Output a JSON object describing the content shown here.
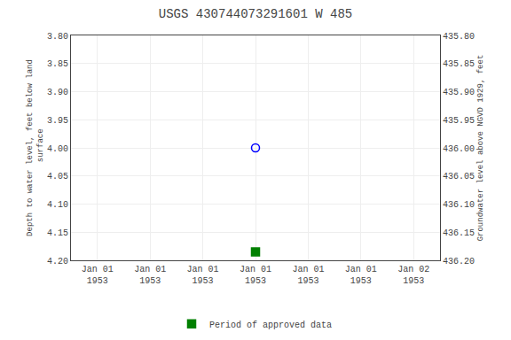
{
  "chart_data": {
    "type": "scatter",
    "title": "USGS 430744073291601 W 485",
    "ylabel": "Depth to water level, feet below land\n surface",
    "y2label": "Groundwater level above NGVD 1929, feet",
    "categories": [
      "Jan 01\n1953",
      "Jan 01\n1953",
      "Jan 01\n1953",
      "Jan 01\n1953",
      "Jan 01\n1953",
      "Jan 01\n1953",
      "Jan 02\n1953"
    ],
    "series": [
      {
        "color": "blue",
        "marker": "open_circle",
        "values": [
          null,
          null,
          null,
          4.0,
          null,
          null,
          null
        ]
      },
      {
        "name": "Period of approved data",
        "color": "green",
        "marker": "square",
        "values": [
          null,
          null,
          null,
          4.185,
          null,
          null,
          null
        ]
      }
    ],
    "ylim": [
      4.2,
      3.8
    ],
    "yticks": [
      {
        "value": 3.8,
        "label": "3.80"
      },
      3.85,
      {
        "value": 3.9,
        "label": "3.90"
      },
      3.95,
      {
        "value": 4.0,
        "label": "4.00"
      },
      4.05,
      {
        "value": 4.1,
        "label": "4.10"
      },
      4.15,
      {
        "value": 4.2,
        "label": "4.20"
      }
    ],
    "y2lim": [
      436.2,
      435.8
    ],
    "y2ticks": [
      {
        "value": 436.2,
        "label": "436.20"
      },
      436.15,
      {
        "value": 436.1,
        "label": "436.10"
      },
      436.05,
      {
        "value": 436.0,
        "label": "436.00"
      },
      435.95,
      {
        "value": 435.9,
        "label": "435.90"
      },
      435.85,
      {
        "value": 435.8,
        "label": "435.80"
      }
    ],
    "grid": true,
    "legend": "bottom"
  }
}
